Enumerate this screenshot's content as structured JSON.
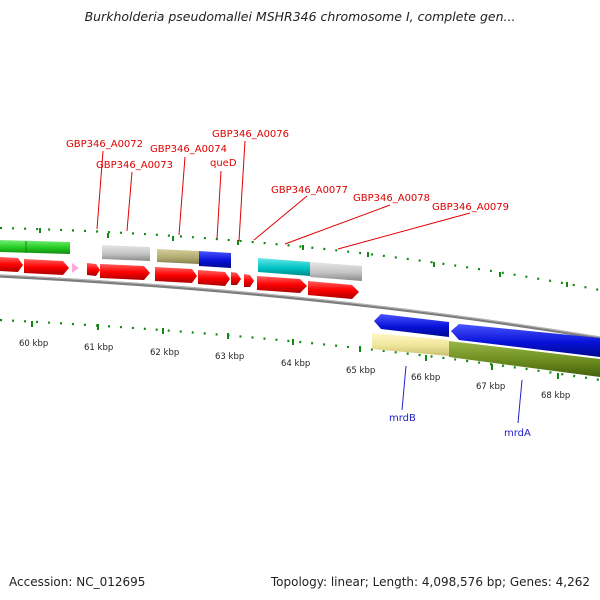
{
  "title": "Burkholderia pseudomallei MSHR346 chromosome I, complete gen...",
  "footer": {
    "accession": "Accession: NC_012695",
    "stats": "Topology: linear; Length: 4,098,576 bp; Genes: 4,262"
  },
  "scale_labels": [
    "60 kbp",
    "61 kbp",
    "62 kbp",
    "63 kbp",
    "64 kbp",
    "65 kbp",
    "66 kbp",
    "67 kbp",
    "68 kbp"
  ],
  "gene_labels_top": [
    "GBP346_A0072",
    "GBP346_A0073",
    "GBP346_A0074",
    "queD",
    "GBP346_A0076",
    "GBP346_A0077",
    "GBP346_A0078",
    "GBP346_A0079"
  ],
  "gene_labels_bottom": [
    "mrdB",
    "mrdA"
  ],
  "colors": {
    "red": "#ff0000",
    "gray": "#c8c8c8",
    "olive": "#b8b27a",
    "blue": "#0a14e0",
    "cyan": "#00c8c8",
    "green": "#22cc22",
    "pale_yellow": "#f2eaa0",
    "dark_olive": "#6b8c1e",
    "pink": "#ffb0e0",
    "tick_green": "#118811",
    "label_red": "#e00000",
    "label_blue": "#2020cc"
  }
}
